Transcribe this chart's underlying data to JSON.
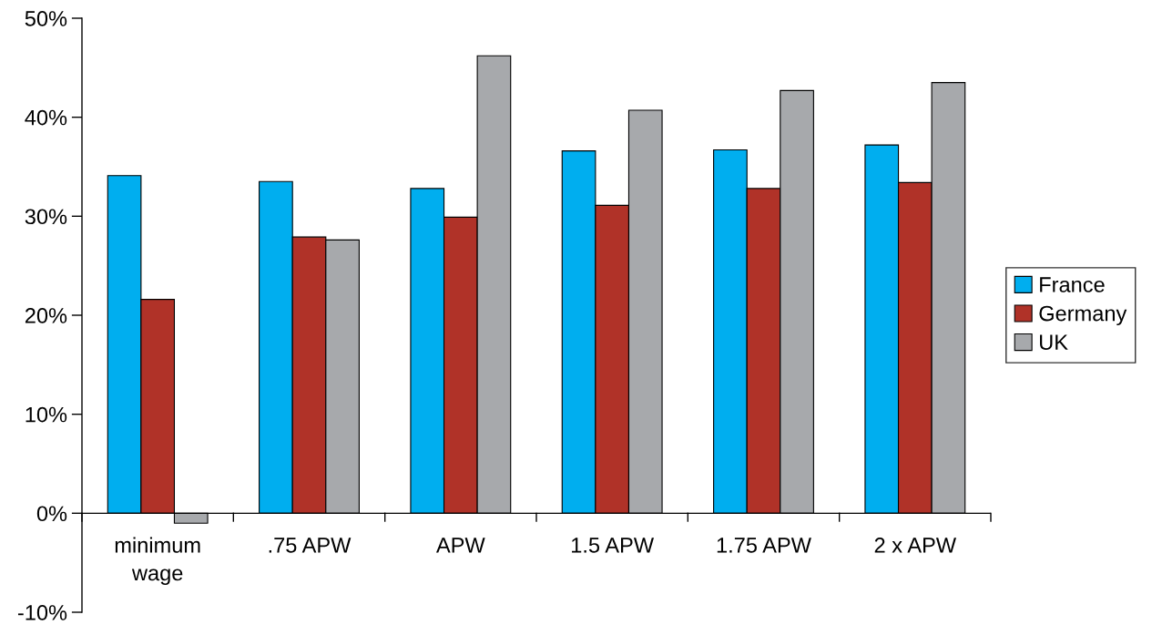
{
  "chart_data": {
    "type": "bar",
    "categories": [
      "minimum\nwage",
      ".75 APW",
      "APW",
      "1.5 APW",
      "1.75 APW",
      "2 x APW"
    ],
    "series": [
      {
        "name": "France",
        "color": "#00aeef",
        "values": [
          34.1,
          33.5,
          32.8,
          36.6,
          36.7,
          37.2
        ]
      },
      {
        "name": "Germany",
        "color": "#b03228",
        "values": [
          21.6,
          27.9,
          29.9,
          31.1,
          32.8,
          33.4
        ]
      },
      {
        "name": "UK",
        "color": "#a7a9ac",
        "values": [
          -1.0,
          27.6,
          46.2,
          40.7,
          42.7,
          43.5
        ]
      }
    ],
    "ylim": [
      -10,
      50
    ],
    "yticks": [
      {
        "value": -10,
        "label": "-10%"
      },
      {
        "value": 0,
        "label": "0%"
      },
      {
        "value": 10,
        "label": "10%"
      },
      {
        "value": 20,
        "label": "20%"
      },
      {
        "value": 30,
        "label": "30%"
      },
      {
        "value": 40,
        "label": "40%"
      },
      {
        "value": 50,
        "label": "50%"
      }
    ],
    "grid": false,
    "legend": "right"
  }
}
